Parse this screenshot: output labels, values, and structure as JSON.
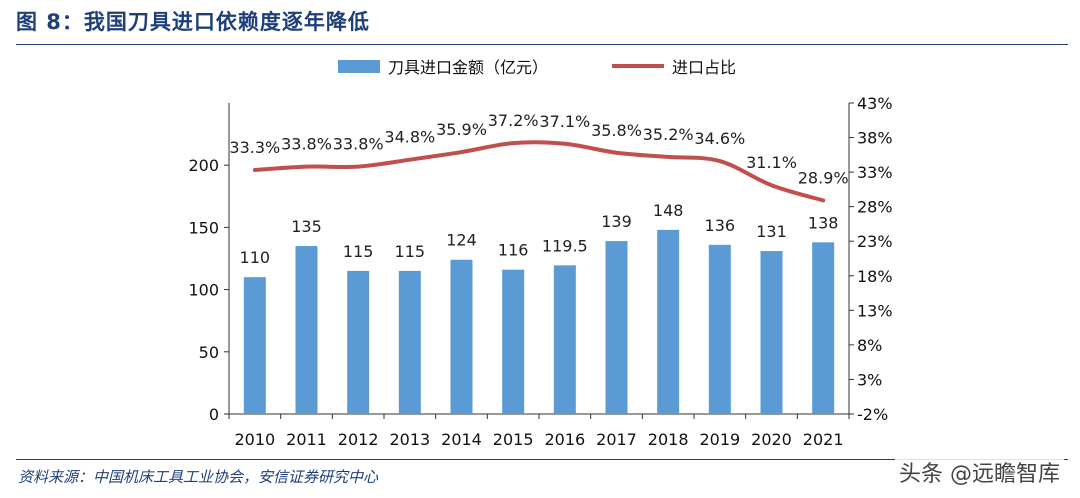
{
  "title": "图 8：我国刀具进口依赖度逐年降低",
  "source": "资料来源：中国机床工具工业协会，安信证券研究中心",
  "watermark": "头条 @远瞻智库",
  "colors": {
    "bar": "#5b9bd5",
    "line": "#c0504d",
    "title": "#1f3f7a"
  },
  "chart_data": {
    "type": "bar+line",
    "categories": [
      "2010",
      "2011",
      "2012",
      "2013",
      "2014",
      "2015",
      "2016",
      "2017",
      "2018",
      "2019",
      "2020",
      "2021"
    ],
    "series": [
      {
        "name": "刀具进口金额（亿元）",
        "type": "bar",
        "axis": "left",
        "values": [
          110,
          135,
          115,
          115,
          124,
          116,
          119.5,
          139,
          148,
          136,
          131,
          138
        ],
        "labels": [
          "110",
          "135",
          "115",
          "115",
          "124",
          "116",
          "119.5",
          "139",
          "148",
          "136",
          "131",
          "138"
        ]
      },
      {
        "name": "进口占比",
        "type": "line",
        "axis": "right",
        "values": [
          33.3,
          33.8,
          33.8,
          34.8,
          35.9,
          37.2,
          37.1,
          35.8,
          35.2,
          34.6,
          31.1,
          28.9
        ],
        "labels": [
          "33.3%",
          "33.8%",
          "33.8%",
          "34.8%",
          "35.9%",
          "37.2%",
          "37.1%",
          "35.8%",
          "35.2%",
          "34.6%",
          "31.1%",
          "28.9%"
        ]
      }
    ],
    "y_left": {
      "ylim": [
        0,
        250
      ],
      "ticks": [
        "0",
        "50",
        "100",
        "150",
        "200"
      ]
    },
    "y_right": {
      "ylim": [
        -2,
        43
      ],
      "ticks": [
        "-2%",
        "3%",
        "8%",
        "13%",
        "18%",
        "23%",
        "28%",
        "33%",
        "38%",
        "43%"
      ]
    },
    "legend_position": "top-center",
    "grid": false
  }
}
